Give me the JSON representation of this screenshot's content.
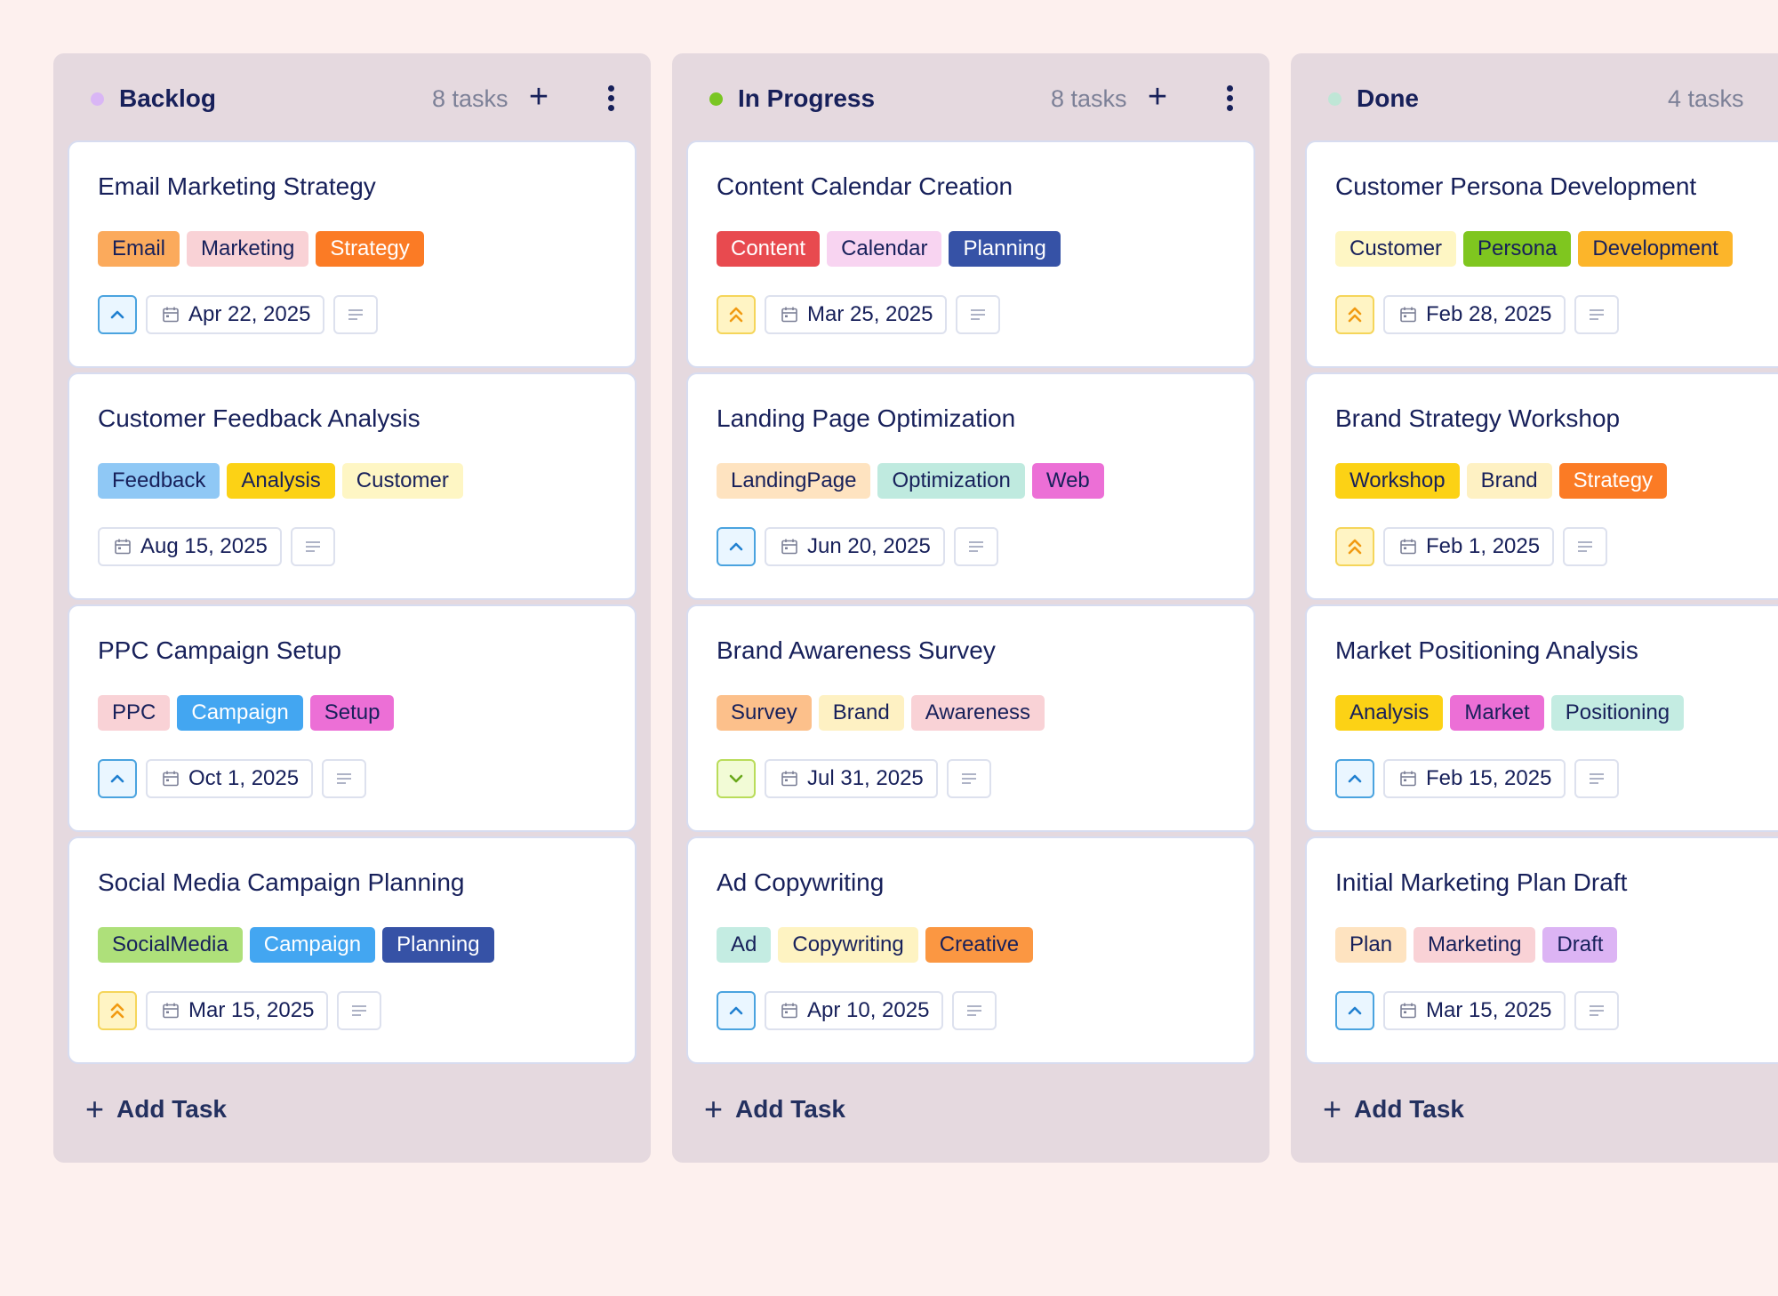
{
  "columns": [
    {
      "title": "Backlog",
      "dot_color": "#d9b6f5",
      "count": "8 tasks",
      "add_icon": "plus-icon",
      "menu_icon": "kebab-menu-icon",
      "add_task": "Add Task",
      "cards": [
        {
          "title": "Email Marketing Strategy",
          "priority": "high",
          "date": "Apr 22, 2025",
          "tags": [
            {
              "label": "Email",
              "bg": "#fbaa5c",
              "fg": "#17205a"
            },
            {
              "label": "Marketing",
              "bg": "#f9d2d6",
              "fg": "#17205a"
            },
            {
              "label": "Strategy",
              "bg": "#fb7b25",
              "fg": "#ffffff"
            }
          ]
        },
        {
          "title": "Customer Feedback Analysis",
          "priority": "none",
          "date": "Aug 15, 2025",
          "tags": [
            {
              "label": "Feedback",
              "bg": "#8fc8f5",
              "fg": "#17205a"
            },
            {
              "label": "Analysis",
              "bg": "#fcd215",
              "fg": "#17205a"
            },
            {
              "label": "Customer",
              "bg": "#fef6c4",
              "fg": "#17205a"
            }
          ]
        },
        {
          "title": "PPC Campaign Setup",
          "priority": "high",
          "date": "Oct 1, 2025",
          "tags": [
            {
              "label": "PPC",
              "bg": "#f9d2d6",
              "fg": "#17205a"
            },
            {
              "label": "Campaign",
              "bg": "#43a6f1",
              "fg": "#ffffff"
            },
            {
              "label": "Setup",
              "bg": "#ec6fd6",
              "fg": "#17205a"
            }
          ]
        },
        {
          "title": "Social Media Campaign Planning",
          "priority": "urgent",
          "date": "Mar 15, 2025",
          "tags": [
            {
              "label": "SocialMedia",
              "bg": "#aee07a",
              "fg": "#17205a"
            },
            {
              "label": "Campaign",
              "bg": "#43a6f1",
              "fg": "#ffffff"
            },
            {
              "label": "Planning",
              "bg": "#3652a6",
              "fg": "#ffffff"
            }
          ]
        }
      ]
    },
    {
      "title": "In Progress",
      "dot_color": "#7ac623",
      "count": "8 tasks",
      "add_icon": "plus-icon",
      "menu_icon": "kebab-menu-icon",
      "add_task": "Add Task",
      "cards": [
        {
          "title": "Content Calendar Creation",
          "priority": "urgent",
          "date": "Mar 25, 2025",
          "tags": [
            {
              "label": "Content",
              "bg": "#e84a4f",
              "fg": "#ffffff"
            },
            {
              "label": "Calendar",
              "bg": "#f8d4f1",
              "fg": "#17205a"
            },
            {
              "label": "Planning",
              "bg": "#3652a6",
              "fg": "#ffffff"
            }
          ]
        },
        {
          "title": "Landing Page Optimization",
          "priority": "high",
          "date": "Jun 20, 2025",
          "tags": [
            {
              "label": "LandingPage",
              "bg": "#fee3c0",
              "fg": "#17205a"
            },
            {
              "label": "Optimization",
              "bg": "#bfeadf",
              "fg": "#17205a"
            },
            {
              "label": "Web",
              "bg": "#ec6fd6",
              "fg": "#17205a"
            }
          ]
        },
        {
          "title": "Brand Awareness Survey",
          "priority": "low",
          "date": "Jul 31, 2025",
          "tags": [
            {
              "label": "Survey",
              "bg": "#fcc08b",
              "fg": "#17205a"
            },
            {
              "label": "Brand",
              "bg": "#fef1c3",
              "fg": "#17205a"
            },
            {
              "label": "Awareness",
              "bg": "#f9d2d6",
              "fg": "#17205a"
            }
          ]
        },
        {
          "title": "Ad Copywriting",
          "priority": "high",
          "date": "Apr 10, 2025",
          "tags": [
            {
              "label": "Ad",
              "bg": "#c4ece2",
              "fg": "#17205a"
            },
            {
              "label": "Copywriting",
              "bg": "#fef3c2",
              "fg": "#17205a"
            },
            {
              "label": "Creative",
              "bg": "#fb9742",
              "fg": "#17205a"
            }
          ]
        }
      ]
    },
    {
      "title": "Done",
      "dot_color": "#bfe6d6",
      "count": "4 tasks",
      "add_icon": "plus-icon",
      "menu_icon": "kebab-menu-icon",
      "add_task": "Add Task",
      "cards": [
        {
          "title": "Customer Persona Development",
          "priority": "urgent",
          "date": "Feb 28, 2025",
          "tags": [
            {
              "label": "Customer",
              "bg": "#fef6c4",
              "fg": "#17205a"
            },
            {
              "label": "Persona",
              "bg": "#7fc61f",
              "fg": "#17205a"
            },
            {
              "label": "Development",
              "bg": "#fcb52a",
              "fg": "#17205a"
            }
          ]
        },
        {
          "title": "Brand Strategy Workshop",
          "priority": "urgent",
          "date": "Feb 1, 2025",
          "tags": [
            {
              "label": "Workshop",
              "bg": "#fcd215",
              "fg": "#17205a"
            },
            {
              "label": "Brand",
              "bg": "#fef1c3",
              "fg": "#17205a"
            },
            {
              "label": "Strategy",
              "bg": "#fb7b25",
              "fg": "#ffffff"
            }
          ]
        },
        {
          "title": "Market Positioning Analysis",
          "priority": "high",
          "date": "Feb 15, 2025",
          "tags": [
            {
              "label": "Analysis",
              "bg": "#fcd215",
              "fg": "#17205a"
            },
            {
              "label": "Market",
              "bg": "#ec6fd6",
              "fg": "#17205a"
            },
            {
              "label": "Positioning",
              "bg": "#c4ece2",
              "fg": "#17205a"
            }
          ]
        },
        {
          "title": "Initial Marketing Plan Draft",
          "priority": "high",
          "date": "Mar 15, 2025",
          "tags": [
            {
              "label": "Plan",
              "bg": "#fee3c0",
              "fg": "#17205a"
            },
            {
              "label": "Marketing",
              "bg": "#f9d2d6",
              "fg": "#17205a"
            },
            {
              "label": "Draft",
              "bg": "#dcb4f4",
              "fg": "#17205a"
            }
          ]
        }
      ]
    }
  ]
}
